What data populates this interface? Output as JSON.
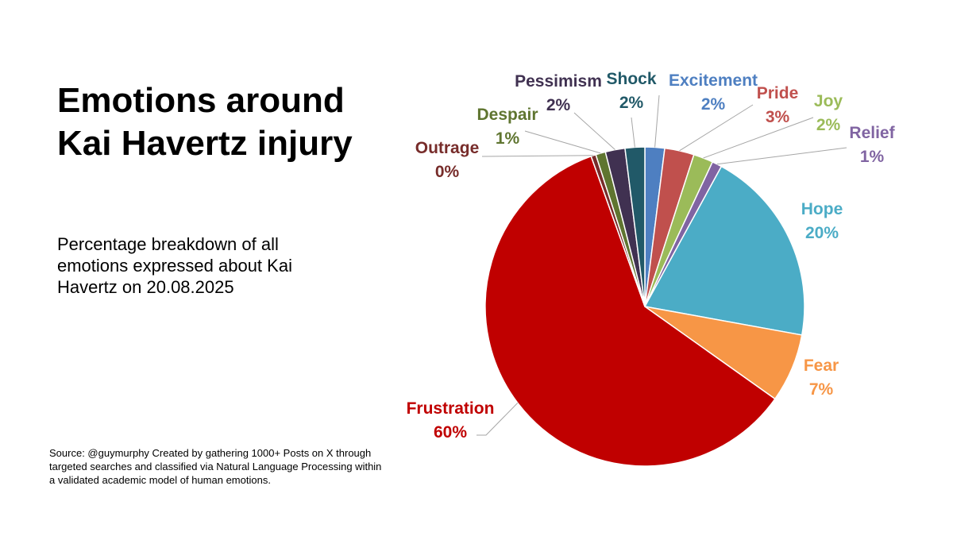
{
  "title": {
    "line1": "Emotions around",
    "line2": "Kai Havertz injury"
  },
  "subtitle": "Percentage breakdown of all emotions expressed about Kai Havertz on 20.08.2025",
  "source": "Source: @guymurphy Created by gathering 1000+ Posts on X through targeted searches and classified via Natural Language Processing within a validated academic model of human emotions.",
  "chart_data": {
    "type": "pie",
    "title": "Emotions around Kai Havertz injury",
    "slices": [
      {
        "name": "Excitement",
        "value": 2,
        "label": "2%",
        "color": "#4e7fc1"
      },
      {
        "name": "Pride",
        "value": 3,
        "label": "3%",
        "color": "#c0504d"
      },
      {
        "name": "Joy",
        "value": 2,
        "label": "2%",
        "color": "#9bbb59"
      },
      {
        "name": "Relief",
        "value": 1,
        "label": "1%",
        "color": "#8064a2"
      },
      {
        "name": "Hope",
        "value": 20,
        "label": "20%",
        "color": "#4bacc6"
      },
      {
        "name": "Fear",
        "value": 7,
        "label": "7%",
        "color": "#f79646"
      },
      {
        "name": "Frustration",
        "value": 60,
        "label": "60%",
        "color": "#c00000"
      },
      {
        "name": "Outrage",
        "value": 0.5,
        "label": "0%",
        "color": "#772c2a"
      },
      {
        "name": "Despair",
        "value": 1,
        "label": "1%",
        "color": "#5f7530"
      },
      {
        "name": "Pessimism",
        "value": 2,
        "label": "2%",
        "color": "#403151"
      },
      {
        "name": "Shock",
        "value": 2,
        "label": "2%",
        "color": "#215968"
      }
    ],
    "label_colors": {
      "Excitement": "#4e7fc1",
      "Pride": "#c0504d",
      "Joy": "#9bbb59",
      "Relief": "#8064a2",
      "Hope": "#4bacc6",
      "Fear": "#f79646",
      "Frustration": "#c00000",
      "Outrage": "#772c2a",
      "Despair": "#5f7530",
      "Pessimism": "#403151",
      "Shock": "#215968"
    }
  }
}
